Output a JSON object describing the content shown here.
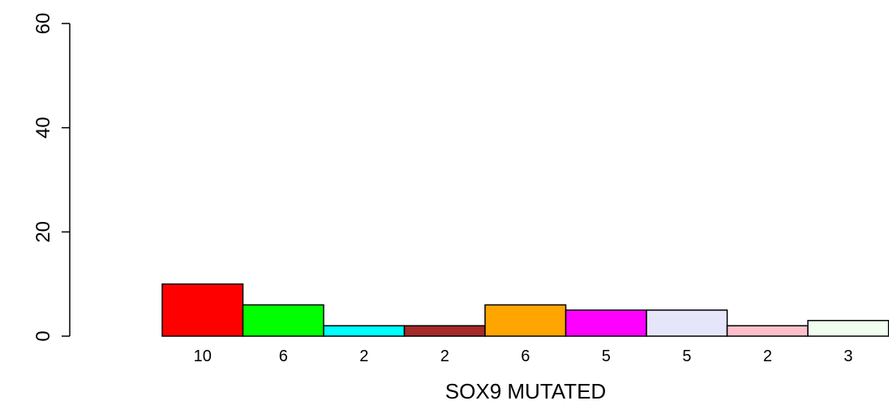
{
  "chart_data": {
    "type": "bar",
    "xlabel": "SOX9 MUTATED",
    "ylabel": "",
    "ylim": [
      0,
      60
    ],
    "yticks": [
      0,
      20,
      40,
      60
    ],
    "grid": false,
    "bars": [
      {
        "label": "10",
        "value": 10,
        "color": "#ff0000"
      },
      {
        "label": "6",
        "value": 6,
        "color": "#00ff00"
      },
      {
        "label": "2",
        "value": 2,
        "color": "#00ffff"
      },
      {
        "label": "2",
        "value": 2,
        "color": "#a52a2a"
      },
      {
        "label": "6",
        "value": 6,
        "color": "#ffa500"
      },
      {
        "label": "5",
        "value": 5,
        "color": "#ff00ff"
      },
      {
        "label": "5",
        "value": 5,
        "color": "#e6e6fa"
      },
      {
        "label": "2",
        "value": 2,
        "color": "#ffc0cb"
      },
      {
        "label": "3",
        "value": 3,
        "color": "#f0fff0"
      }
    ]
  }
}
